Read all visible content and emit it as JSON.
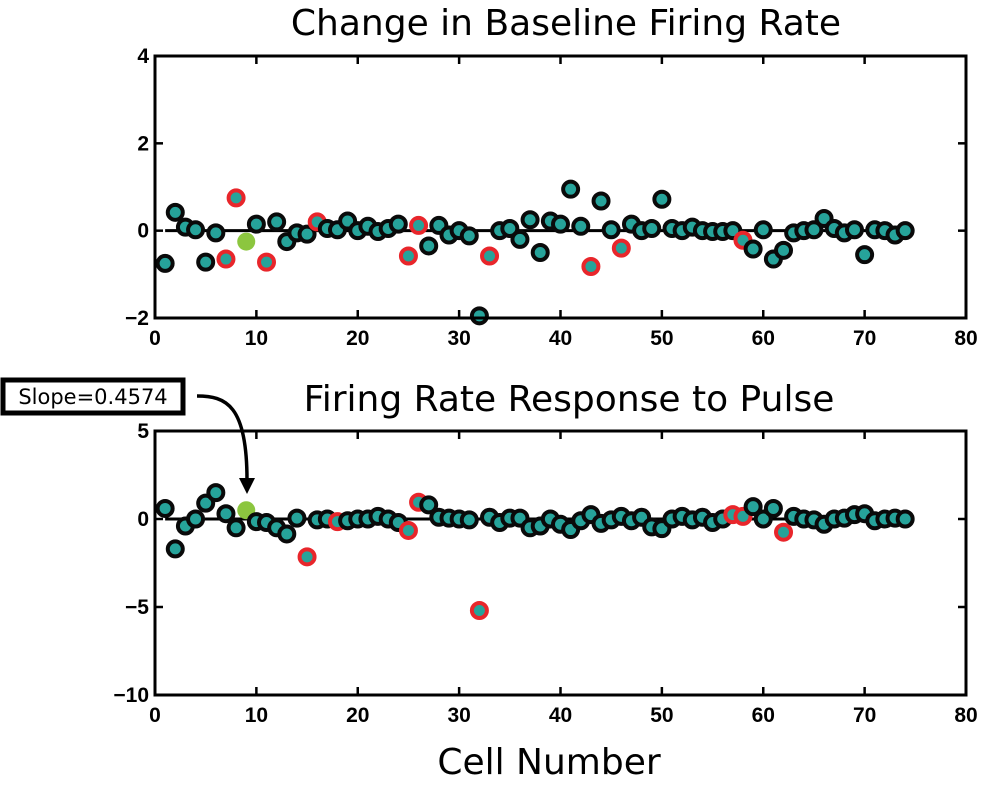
{
  "figure": {
    "xlabel": "Cell Number",
    "annotation": {
      "text": "Slope=0.4574",
      "points_to_cell": 9,
      "points_to_panel": 1
    }
  },
  "colors": {
    "fill": "#26A39A",
    "edge_normal": "#0A0A0A",
    "edge_highlight": "#E8262B",
    "special": "#8CC63F",
    "axis": "#000000"
  },
  "chart_data": [
    {
      "type": "scatter",
      "title": "Change in Baseline Firing Rate",
      "xlabel": "",
      "ylabel": "",
      "xlim": [
        0,
        80
      ],
      "ylim": [
        -2,
        4
      ],
      "xticks": [
        0,
        10,
        20,
        30,
        40,
        50,
        60,
        70,
        80
      ],
      "yticks": [
        -2,
        0,
        2,
        4
      ],
      "ytick_labels": [
        "−2",
        "0",
        "2",
        "4"
      ],
      "reference_line": {
        "y": 0,
        "from_x": 1,
        "to_x": 74
      },
      "grid": false,
      "points": [
        {
          "x": 1,
          "y": -0.75,
          "edge": "normal"
        },
        {
          "x": 2,
          "y": 0.42,
          "edge": "normal"
        },
        {
          "x": 3,
          "y": 0.08,
          "edge": "normal"
        },
        {
          "x": 4,
          "y": 0.02,
          "edge": "normal"
        },
        {
          "x": 5,
          "y": -0.72,
          "edge": "normal"
        },
        {
          "x": 6,
          "y": -0.05,
          "edge": "normal"
        },
        {
          "x": 7,
          "y": -0.65,
          "edge": "highlight"
        },
        {
          "x": 8,
          "y": 0.75,
          "edge": "highlight"
        },
        {
          "x": 9,
          "y": -0.25,
          "edge": "special"
        },
        {
          "x": 10,
          "y": 0.15,
          "edge": "normal"
        },
        {
          "x": 11,
          "y": -0.72,
          "edge": "highlight"
        },
        {
          "x": 12,
          "y": 0.2,
          "edge": "normal"
        },
        {
          "x": 13,
          "y": -0.25,
          "edge": "normal"
        },
        {
          "x": 14,
          "y": -0.05,
          "edge": "normal"
        },
        {
          "x": 15,
          "y": -0.08,
          "edge": "normal"
        },
        {
          "x": 16,
          "y": 0.2,
          "edge": "highlight"
        },
        {
          "x": 17,
          "y": 0.05,
          "edge": "normal"
        },
        {
          "x": 18,
          "y": 0.02,
          "edge": "normal"
        },
        {
          "x": 19,
          "y": 0.22,
          "edge": "normal"
        },
        {
          "x": 20,
          "y": 0.0,
          "edge": "normal"
        },
        {
          "x": 21,
          "y": 0.1,
          "edge": "normal"
        },
        {
          "x": 22,
          "y": -0.02,
          "edge": "normal"
        },
        {
          "x": 23,
          "y": 0.05,
          "edge": "normal"
        },
        {
          "x": 24,
          "y": 0.15,
          "edge": "normal"
        },
        {
          "x": 25,
          "y": -0.58,
          "edge": "highlight"
        },
        {
          "x": 26,
          "y": 0.12,
          "edge": "highlight"
        },
        {
          "x": 27,
          "y": -0.35,
          "edge": "normal"
        },
        {
          "x": 28,
          "y": 0.12,
          "edge": "normal"
        },
        {
          "x": 29,
          "y": -0.1,
          "edge": "normal"
        },
        {
          "x": 30,
          "y": 0.0,
          "edge": "normal"
        },
        {
          "x": 31,
          "y": -0.12,
          "edge": "normal"
        },
        {
          "x": 32,
          "y": -1.95,
          "edge": "normal"
        },
        {
          "x": 33,
          "y": -0.58,
          "edge": "highlight"
        },
        {
          "x": 34,
          "y": 0.0,
          "edge": "normal"
        },
        {
          "x": 35,
          "y": 0.05,
          "edge": "normal"
        },
        {
          "x": 36,
          "y": -0.2,
          "edge": "normal"
        },
        {
          "x": 37,
          "y": 0.25,
          "edge": "normal"
        },
        {
          "x": 38,
          "y": -0.5,
          "edge": "normal"
        },
        {
          "x": 39,
          "y": 0.22,
          "edge": "normal"
        },
        {
          "x": 40,
          "y": 0.15,
          "edge": "normal"
        },
        {
          "x": 41,
          "y": 0.95,
          "edge": "normal"
        },
        {
          "x": 42,
          "y": 0.1,
          "edge": "normal"
        },
        {
          "x": 43,
          "y": -0.82,
          "edge": "highlight"
        },
        {
          "x": 44,
          "y": 0.68,
          "edge": "normal"
        },
        {
          "x": 45,
          "y": 0.02,
          "edge": "normal"
        },
        {
          "x": 46,
          "y": -0.4,
          "edge": "highlight"
        },
        {
          "x": 47,
          "y": 0.15,
          "edge": "normal"
        },
        {
          "x": 48,
          "y": 0.0,
          "edge": "normal"
        },
        {
          "x": 49,
          "y": 0.05,
          "edge": "normal"
        },
        {
          "x": 50,
          "y": 0.72,
          "edge": "normal"
        },
        {
          "x": 51,
          "y": 0.05,
          "edge": "normal"
        },
        {
          "x": 52,
          "y": 0.0,
          "edge": "normal"
        },
        {
          "x": 53,
          "y": 0.08,
          "edge": "normal"
        },
        {
          "x": 54,
          "y": 0.0,
          "edge": "normal"
        },
        {
          "x": 55,
          "y": -0.02,
          "edge": "normal"
        },
        {
          "x": 56,
          "y": -0.02,
          "edge": "normal"
        },
        {
          "x": 57,
          "y": 0.0,
          "edge": "normal"
        },
        {
          "x": 58,
          "y": -0.22,
          "edge": "highlight"
        },
        {
          "x": 59,
          "y": -0.42,
          "edge": "normal"
        },
        {
          "x": 60,
          "y": 0.02,
          "edge": "normal"
        },
        {
          "x": 61,
          "y": -0.65,
          "edge": "normal"
        },
        {
          "x": 62,
          "y": -0.45,
          "edge": "normal"
        },
        {
          "x": 63,
          "y": -0.05,
          "edge": "normal"
        },
        {
          "x": 64,
          "y": 0.0,
          "edge": "normal"
        },
        {
          "x": 65,
          "y": 0.02,
          "edge": "normal"
        },
        {
          "x": 66,
          "y": 0.28,
          "edge": "normal"
        },
        {
          "x": 67,
          "y": 0.05,
          "edge": "normal"
        },
        {
          "x": 68,
          "y": -0.05,
          "edge": "normal"
        },
        {
          "x": 69,
          "y": 0.02,
          "edge": "normal"
        },
        {
          "x": 70,
          "y": -0.55,
          "edge": "normal"
        },
        {
          "x": 71,
          "y": 0.02,
          "edge": "normal"
        },
        {
          "x": 72,
          "y": 0.0,
          "edge": "normal"
        },
        {
          "x": 73,
          "y": -0.1,
          "edge": "normal"
        },
        {
          "x": 74,
          "y": 0.0,
          "edge": "normal"
        }
      ]
    },
    {
      "type": "scatter",
      "title": "Firing Rate Response to Pulse",
      "xlabel": "Cell Number",
      "ylabel": "",
      "xlim": [
        0,
        80
      ],
      "ylim": [
        -10,
        5
      ],
      "xticks": [
        0,
        10,
        20,
        30,
        40,
        50,
        60,
        70,
        80
      ],
      "yticks": [
        -10,
        -5,
        0,
        5
      ],
      "ytick_labels": [
        "−10",
        "−5",
        "0",
        "5"
      ],
      "reference_line": {
        "y": 0,
        "from_x": 1,
        "to_x": 74
      },
      "grid": false,
      "points": [
        {
          "x": 1,
          "y": 0.6,
          "edge": "normal"
        },
        {
          "x": 2,
          "y": -1.7,
          "edge": "normal"
        },
        {
          "x": 3,
          "y": -0.4,
          "edge": "normal"
        },
        {
          "x": 4,
          "y": 0.0,
          "edge": "normal"
        },
        {
          "x": 5,
          "y": 0.9,
          "edge": "normal"
        },
        {
          "x": 6,
          "y": 1.5,
          "edge": "normal"
        },
        {
          "x": 7,
          "y": 0.3,
          "edge": "normal"
        },
        {
          "x": 8,
          "y": -0.5,
          "edge": "normal"
        },
        {
          "x": 9,
          "y": 0.5,
          "edge": "special"
        },
        {
          "x": 10,
          "y": -0.15,
          "edge": "normal"
        },
        {
          "x": 11,
          "y": -0.2,
          "edge": "normal"
        },
        {
          "x": 12,
          "y": -0.5,
          "edge": "normal"
        },
        {
          "x": 13,
          "y": -0.85,
          "edge": "normal"
        },
        {
          "x": 14,
          "y": 0.05,
          "edge": "normal"
        },
        {
          "x": 15,
          "y": -2.15,
          "edge": "highlight"
        },
        {
          "x": 16,
          "y": -0.05,
          "edge": "normal"
        },
        {
          "x": 17,
          "y": 0.0,
          "edge": "normal"
        },
        {
          "x": 18,
          "y": -0.15,
          "edge": "highlight"
        },
        {
          "x": 19,
          "y": -0.1,
          "edge": "normal"
        },
        {
          "x": 20,
          "y": 0.0,
          "edge": "normal"
        },
        {
          "x": 21,
          "y": 0.0,
          "edge": "normal"
        },
        {
          "x": 22,
          "y": 0.15,
          "edge": "normal"
        },
        {
          "x": 23,
          "y": 0.0,
          "edge": "normal"
        },
        {
          "x": 24,
          "y": -0.2,
          "edge": "normal"
        },
        {
          "x": 25,
          "y": -0.65,
          "edge": "highlight"
        },
        {
          "x": 26,
          "y": 0.95,
          "edge": "highlight"
        },
        {
          "x": 27,
          "y": 0.8,
          "edge": "normal"
        },
        {
          "x": 28,
          "y": 0.1,
          "edge": "normal"
        },
        {
          "x": 29,
          "y": 0.05,
          "edge": "normal"
        },
        {
          "x": 30,
          "y": 0.0,
          "edge": "normal"
        },
        {
          "x": 31,
          "y": -0.05,
          "edge": "normal"
        },
        {
          "x": 32,
          "y": -5.2,
          "edge": "highlight"
        },
        {
          "x": 33,
          "y": 0.1,
          "edge": "normal"
        },
        {
          "x": 34,
          "y": -0.2,
          "edge": "normal"
        },
        {
          "x": 35,
          "y": 0.05,
          "edge": "normal"
        },
        {
          "x": 36,
          "y": 0.05,
          "edge": "normal"
        },
        {
          "x": 37,
          "y": -0.5,
          "edge": "normal"
        },
        {
          "x": 38,
          "y": -0.4,
          "edge": "normal"
        },
        {
          "x": 39,
          "y": 0.0,
          "edge": "normal"
        },
        {
          "x": 40,
          "y": -0.3,
          "edge": "normal"
        },
        {
          "x": 41,
          "y": -0.6,
          "edge": "normal"
        },
        {
          "x": 42,
          "y": -0.1,
          "edge": "normal"
        },
        {
          "x": 43,
          "y": 0.25,
          "edge": "normal"
        },
        {
          "x": 44,
          "y": -0.25,
          "edge": "normal"
        },
        {
          "x": 45,
          "y": -0.05,
          "edge": "normal"
        },
        {
          "x": 46,
          "y": 0.15,
          "edge": "normal"
        },
        {
          "x": 47,
          "y": -0.1,
          "edge": "normal"
        },
        {
          "x": 48,
          "y": 0.1,
          "edge": "normal"
        },
        {
          "x": 49,
          "y": -0.45,
          "edge": "normal"
        },
        {
          "x": 50,
          "y": -0.55,
          "edge": "normal"
        },
        {
          "x": 51,
          "y": 0.0,
          "edge": "normal"
        },
        {
          "x": 52,
          "y": 0.15,
          "edge": "normal"
        },
        {
          "x": 53,
          "y": -0.05,
          "edge": "normal"
        },
        {
          "x": 54,
          "y": 0.1,
          "edge": "normal"
        },
        {
          "x": 55,
          "y": -0.2,
          "edge": "normal"
        },
        {
          "x": 56,
          "y": 0.0,
          "edge": "normal"
        },
        {
          "x": 57,
          "y": 0.25,
          "edge": "highlight"
        },
        {
          "x": 58,
          "y": 0.15,
          "edge": "highlight"
        },
        {
          "x": 59,
          "y": 0.7,
          "edge": "normal"
        },
        {
          "x": 60,
          "y": 0.0,
          "edge": "normal"
        },
        {
          "x": 61,
          "y": 0.6,
          "edge": "normal"
        },
        {
          "x": 62,
          "y": -0.75,
          "edge": "highlight"
        },
        {
          "x": 63,
          "y": 0.15,
          "edge": "normal"
        },
        {
          "x": 64,
          "y": 0.0,
          "edge": "normal"
        },
        {
          "x": 65,
          "y": -0.05,
          "edge": "normal"
        },
        {
          "x": 66,
          "y": -0.3,
          "edge": "normal"
        },
        {
          "x": 67,
          "y": 0.0,
          "edge": "normal"
        },
        {
          "x": 68,
          "y": 0.05,
          "edge": "normal"
        },
        {
          "x": 69,
          "y": 0.25,
          "edge": "normal"
        },
        {
          "x": 70,
          "y": 0.3,
          "edge": "normal"
        },
        {
          "x": 71,
          "y": -0.1,
          "edge": "normal"
        },
        {
          "x": 72,
          "y": 0.0,
          "edge": "normal"
        },
        {
          "x": 73,
          "y": 0.05,
          "edge": "normal"
        },
        {
          "x": 74,
          "y": 0.0,
          "edge": "normal"
        }
      ]
    }
  ]
}
